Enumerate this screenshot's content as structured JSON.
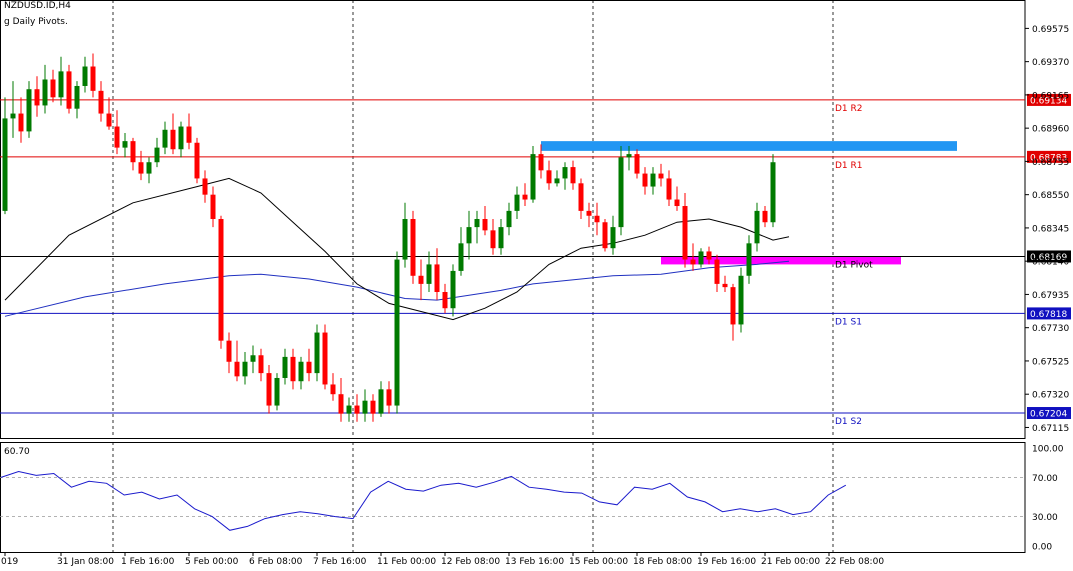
{
  "header": {
    "symbol_line": "NZDUSD.ID,H4",
    "indicator_line": "g Daily Pivots."
  },
  "osc_label": "60.70",
  "colors": {
    "bull": "#007a00",
    "bear": "#ff0000",
    "ma_fast": "#000000",
    "ma_slow": "#2030c0",
    "r_level": "#e00000",
    "s_level": "#1010c0",
    "pivot": "#000000",
    "zone_blue": "#2196f3",
    "zone_magenta": "#ff00ff",
    "osc_line": "#1a1acc",
    "grid": "#000000"
  },
  "chart_data": {
    "type": "candlestick",
    "price_axis": {
      "ylim": [
        0.6705,
        0.6975
      ],
      "ticks": [
        "0.69575",
        "0.69370",
        "0.69165",
        "0.68960",
        "0.68755",
        "0.68550",
        "0.68345",
        "0.68140",
        "0.67935",
        "0.67730",
        "0.67525",
        "0.67320",
        "0.67115"
      ]
    },
    "levels": [
      {
        "label": "D1 R2",
        "value": 0.69134,
        "tag": "0.69134",
        "kind": "r"
      },
      {
        "label": "D1 R1",
        "value": 0.68783,
        "tag": "0.68783",
        "kind": "r"
      },
      {
        "label": "D1 Pivot",
        "value": 0.68169,
        "tag": "0.68169",
        "kind": "p"
      },
      {
        "label": "D1 S1",
        "value": 0.67818,
        "tag": "0.67818",
        "kind": "s"
      },
      {
        "label": "D1 S2",
        "value": 0.67204,
        "tag": "0.67204",
        "kind": "s"
      }
    ],
    "zones": [
      {
        "color": "blue",
        "bar_from": 67,
        "bar_to": 119,
        "y_top": 0.6888,
        "y_bottom": 0.6882
      },
      {
        "color": "magenta",
        "bar_from": 82,
        "bar_to": 112,
        "y_top": 0.6817,
        "y_bottom": 0.6812
      }
    ],
    "x_axis_labels": [
      {
        "label": "019",
        "bar": 0
      },
      {
        "label": "31 Jan 08:00",
        "bar": 7
      },
      {
        "label": "1 Feb 16:00",
        "bar": 15
      },
      {
        "label": "5 Feb 00:00",
        "bar": 23
      },
      {
        "label": "6 Feb 08:00",
        "bar": 31
      },
      {
        "label": "7 Feb 16:00",
        "bar": 39
      },
      {
        "label": "11 Feb 00:00",
        "bar": 47
      },
      {
        "label": "12 Feb 08:00",
        "bar": 55
      },
      {
        "label": "13 Feb 16:00",
        "bar": 63
      },
      {
        "label": "15 Feb 00:00",
        "bar": 71
      },
      {
        "label": "18 Feb 08:00",
        "bar": 79
      },
      {
        "label": "19 Feb 16:00",
        "bar": 87
      },
      {
        "label": "21 Feb 00:00",
        "bar": 95
      },
      {
        "label": "22 Feb 08:00",
        "bar": 103
      }
    ],
    "day_separators": [
      13.5,
      43.5,
      73.5,
      103.5
    ],
    "ohlc": [
      [
        0.6845,
        0.6915,
        0.6843,
        0.6902
      ],
      [
        0.6902,
        0.6925,
        0.689,
        0.6905
      ],
      [
        0.6905,
        0.6915,
        0.6887,
        0.6894
      ],
      [
        0.6894,
        0.6925,
        0.689,
        0.692
      ],
      [
        0.692,
        0.6928,
        0.6903,
        0.691
      ],
      [
        0.691,
        0.6935,
        0.6905,
        0.6926
      ],
      [
        0.6926,
        0.6932,
        0.6912,
        0.6915
      ],
      [
        0.6915,
        0.694,
        0.691,
        0.6931
      ],
      [
        0.6931,
        0.6935,
        0.6905,
        0.6908
      ],
      [
        0.6908,
        0.6925,
        0.6902,
        0.6922
      ],
      [
        0.6922,
        0.694,
        0.6918,
        0.6934
      ],
      [
        0.6934,
        0.6942,
        0.6915,
        0.6919
      ],
      [
        0.6919,
        0.6925,
        0.69,
        0.6905
      ],
      [
        0.6905,
        0.6915,
        0.6895,
        0.6897
      ],
      [
        0.6897,
        0.6907,
        0.688,
        0.6884
      ],
      [
        0.6884,
        0.6893,
        0.6878,
        0.6888
      ],
      [
        0.6888,
        0.689,
        0.687,
        0.6875
      ],
      [
        0.6875,
        0.6882,
        0.6864,
        0.6868
      ],
      [
        0.6868,
        0.6878,
        0.6862,
        0.6875
      ],
      [
        0.6875,
        0.689,
        0.6872,
        0.6884
      ],
      [
        0.6884,
        0.69,
        0.688,
        0.6895
      ],
      [
        0.6895,
        0.6905,
        0.688,
        0.6883
      ],
      [
        0.6883,
        0.69,
        0.6878,
        0.6897
      ],
      [
        0.6897,
        0.6905,
        0.6883,
        0.6887
      ],
      [
        0.6887,
        0.689,
        0.6862,
        0.6865
      ],
      [
        0.6865,
        0.687,
        0.685,
        0.6855
      ],
      [
        0.6855,
        0.686,
        0.6835,
        0.684
      ],
      [
        0.684,
        0.6842,
        0.676,
        0.6765
      ],
      [
        0.6765,
        0.677,
        0.6745,
        0.6752
      ],
      [
        0.6752,
        0.6765,
        0.674,
        0.6743
      ],
      [
        0.6743,
        0.6758,
        0.6738,
        0.6752
      ],
      [
        0.6752,
        0.6762,
        0.6745,
        0.6756
      ],
      [
        0.6756,
        0.676,
        0.674,
        0.6745
      ],
      [
        0.6745,
        0.675,
        0.672,
        0.6725
      ],
      [
        0.6725,
        0.6745,
        0.6722,
        0.6742
      ],
      [
        0.6742,
        0.676,
        0.6738,
        0.6755
      ],
      [
        0.6755,
        0.676,
        0.6735,
        0.674
      ],
      [
        0.674,
        0.6755,
        0.6735,
        0.6752
      ],
      [
        0.6752,
        0.676,
        0.674,
        0.6745
      ],
      [
        0.6745,
        0.6775,
        0.674,
        0.677
      ],
      [
        0.677,
        0.6775,
        0.6735,
        0.6738
      ],
      [
        0.6738,
        0.6745,
        0.6728,
        0.6732
      ],
      [
        0.6732,
        0.6742,
        0.6715,
        0.672
      ],
      [
        0.672,
        0.673,
        0.6715,
        0.6725
      ],
      [
        0.6725,
        0.6732,
        0.6715,
        0.672
      ],
      [
        0.672,
        0.6735,
        0.6715,
        0.6728
      ],
      [
        0.6728,
        0.6732,
        0.6715,
        0.672
      ],
      [
        0.672,
        0.674,
        0.6718,
        0.6735
      ],
      [
        0.6735,
        0.674,
        0.672,
        0.6725
      ],
      [
        0.6725,
        0.682,
        0.672,
        0.6815
      ],
      [
        0.6815,
        0.685,
        0.681,
        0.684
      ],
      [
        0.684,
        0.6845,
        0.68,
        0.6805
      ],
      [
        0.6805,
        0.6815,
        0.679,
        0.68
      ],
      [
        0.68,
        0.682,
        0.6795,
        0.6812
      ],
      [
        0.6812,
        0.6822,
        0.679,
        0.6795
      ],
      [
        0.6795,
        0.68,
        0.6782,
        0.6785
      ],
      [
        0.6785,
        0.6812,
        0.678,
        0.6808
      ],
      [
        0.6808,
        0.6835,
        0.6805,
        0.6825
      ],
      [
        0.6825,
        0.6845,
        0.6815,
        0.6835
      ],
      [
        0.6835,
        0.6845,
        0.6825,
        0.684
      ],
      [
        0.684,
        0.6848,
        0.683,
        0.6833
      ],
      [
        0.6833,
        0.684,
        0.6818,
        0.6822
      ],
      [
        0.6822,
        0.684,
        0.6818,
        0.6835
      ],
      [
        0.6835,
        0.685,
        0.683,
        0.6845
      ],
      [
        0.6845,
        0.686,
        0.684,
        0.6855
      ],
      [
        0.6855,
        0.6862,
        0.6848,
        0.6852
      ],
      [
        0.6852,
        0.6885,
        0.685,
        0.688
      ],
      [
        0.688,
        0.6886,
        0.6865,
        0.687
      ],
      [
        0.687,
        0.6876,
        0.6858,
        0.6862
      ],
      [
        0.6862,
        0.687,
        0.686,
        0.6865
      ],
      [
        0.6865,
        0.6875,
        0.6858,
        0.6872
      ],
      [
        0.6872,
        0.6876,
        0.6858,
        0.6862
      ],
      [
        0.6862,
        0.6865,
        0.684,
        0.6845
      ],
      [
        0.6845,
        0.685,
        0.6835,
        0.6842
      ],
      [
        0.6842,
        0.685,
        0.683,
        0.6838
      ],
      [
        0.6838,
        0.684,
        0.682,
        0.6822
      ],
      [
        0.6822,
        0.6842,
        0.6818,
        0.6835
      ],
      [
        0.6835,
        0.6885,
        0.683,
        0.6878
      ],
      [
        0.6878,
        0.6885,
        0.687,
        0.688
      ],
      [
        0.688,
        0.6883,
        0.6865,
        0.6868
      ],
      [
        0.6868,
        0.6872,
        0.6855,
        0.686
      ],
      [
        0.686,
        0.6872,
        0.6855,
        0.6868
      ],
      [
        0.6868,
        0.6874,
        0.686,
        0.6865
      ],
      [
        0.6865,
        0.687,
        0.6848,
        0.6852
      ],
      [
        0.6852,
        0.686,
        0.6845,
        0.6848
      ],
      [
        0.6848,
        0.6856,
        0.681,
        0.6815
      ],
      [
        0.6815,
        0.6825,
        0.6808,
        0.6812
      ],
      [
        0.6812,
        0.6822,
        0.681,
        0.682
      ],
      [
        0.682,
        0.6823,
        0.6812,
        0.6815
      ],
      [
        0.6815,
        0.6818,
        0.6795,
        0.68
      ],
      [
        0.68,
        0.6805,
        0.6795,
        0.6798
      ],
      [
        0.6798,
        0.68,
        0.6765,
        0.6775
      ],
      [
        0.6775,
        0.681,
        0.677,
        0.6805
      ],
      [
        0.6805,
        0.683,
        0.68,
        0.6825
      ],
      [
        0.6825,
        0.685,
        0.682,
        0.6845
      ],
      [
        0.6845,
        0.6848,
        0.6835,
        0.6838
      ],
      [
        0.6838,
        0.688,
        0.6835,
        0.6875
      ]
    ],
    "ma_fast": [
      [
        0,
        0.679
      ],
      [
        8,
        0.683
      ],
      [
        16,
        0.685
      ],
      [
        24,
        0.686
      ],
      [
        28,
        0.6865
      ],
      [
        32,
        0.6856
      ],
      [
        36,
        0.6838
      ],
      [
        40,
        0.682
      ],
      [
        44,
        0.68
      ],
      [
        48,
        0.6788
      ],
      [
        52,
        0.6783
      ],
      [
        56,
        0.6778
      ],
      [
        60,
        0.6785
      ],
      [
        64,
        0.6795
      ],
      [
        68,
        0.6812
      ],
      [
        72,
        0.6822
      ],
      [
        76,
        0.6825
      ],
      [
        80,
        0.683
      ],
      [
        84,
        0.6838
      ],
      [
        88,
        0.684
      ],
      [
        92,
        0.6835
      ],
      [
        96,
        0.6827
      ],
      [
        98,
        0.6829
      ]
    ],
    "ma_slow": [
      [
        0,
        0.678
      ],
      [
        10,
        0.6792
      ],
      [
        20,
        0.68
      ],
      [
        28,
        0.6805
      ],
      [
        32,
        0.6806
      ],
      [
        38,
        0.6803
      ],
      [
        44,
        0.6798
      ],
      [
        50,
        0.6791
      ],
      [
        54,
        0.679
      ],
      [
        58,
        0.6793
      ],
      [
        62,
        0.6796
      ],
      [
        66,
        0.68
      ],
      [
        70,
        0.6802
      ],
      [
        76,
        0.6805
      ],
      [
        82,
        0.6806
      ],
      [
        88,
        0.681
      ],
      [
        94,
        0.6812
      ],
      [
        98,
        0.6814
      ]
    ],
    "oscillator": {
      "ylim": [
        0,
        100
      ],
      "ticks": [
        "100.00",
        "70.00",
        "30.00",
        "0.00"
      ],
      "levels": [
        70,
        30
      ],
      "values": [
        [
          0,
          70
        ],
        [
          4,
          76
        ],
        [
          8,
          72
        ],
        [
          12,
          74
        ],
        [
          16,
          60
        ],
        [
          20,
          66
        ],
        [
          24,
          64
        ],
        [
          28,
          52
        ],
        [
          32,
          55
        ],
        [
          36,
          48
        ],
        [
          40,
          52
        ],
        [
          44,
          38
        ],
        [
          48,
          30
        ],
        [
          52,
          16
        ],
        [
          56,
          20
        ],
        [
          60,
          28
        ],
        [
          64,
          32
        ],
        [
          68,
          35
        ],
        [
          72,
          33
        ],
        [
          76,
          30
        ],
        [
          80,
          28
        ],
        [
          84,
          55
        ],
        [
          88,
          66
        ],
        [
          92,
          58
        ],
        [
          96,
          56
        ],
        [
          100,
          62
        ],
        [
          104,
          64
        ],
        [
          108,
          60
        ],
        [
          112,
          65
        ],
        [
          116,
          71
        ],
        [
          120,
          60
        ],
        [
          124,
          58
        ],
        [
          128,
          55
        ],
        [
          132,
          54
        ],
        [
          136,
          45
        ],
        [
          140,
          42
        ],
        [
          144,
          60
        ],
        [
          148,
          58
        ],
        [
          152,
          64
        ],
        [
          156,
          50
        ],
        [
          160,
          45
        ],
        [
          164,
          35
        ],
        [
          168,
          38
        ],
        [
          172,
          35
        ],
        [
          176,
          38
        ],
        [
          180,
          32
        ],
        [
          184,
          35
        ],
        [
          188,
          52
        ],
        [
          192,
          62
        ]
      ]
    }
  }
}
